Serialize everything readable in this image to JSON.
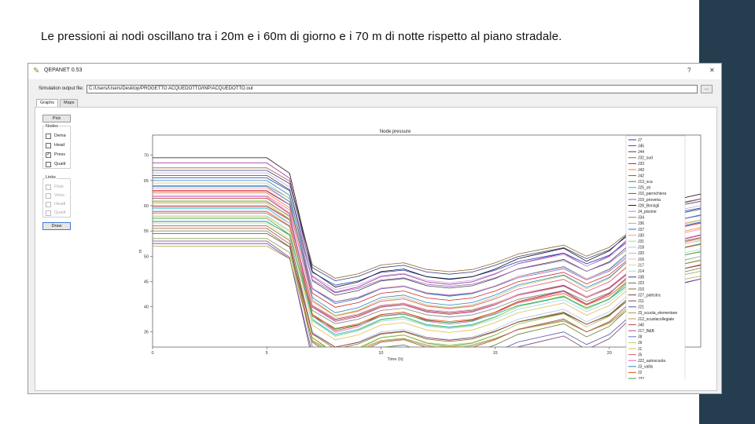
{
  "slide": {
    "title": "Le pressioni ai nodi oscillano tra i 20m e i 60m di giorno e i 70 m di notte rispetto al piano stradale."
  },
  "window": {
    "title": "QEPANET 0.53",
    "help_label": "?",
    "close_label": "✕",
    "app_icon": "pencil-icon"
  },
  "output": {
    "label": "Simulation output file:",
    "value": "C:/Users/Users/Desktop/PROGETTO ACQUEDOTTO/INP/ACQUEDOTTO.out",
    "browse_label": "..."
  },
  "tabs": [
    {
      "label": "Graphs",
      "active": true
    },
    {
      "label": "Maps",
      "active": false
    }
  ],
  "controls": {
    "pick_label": "Pick",
    "nodes_label": "Nodes",
    "nodes": [
      {
        "label": "Dema",
        "checked": false
      },
      {
        "label": "Head",
        "checked": false
      },
      {
        "label": "Press",
        "checked": true
      },
      {
        "label": "Qualit",
        "checked": false
      }
    ],
    "links_label": "Links",
    "links": [
      {
        "label": "Flow",
        "checked": false
      },
      {
        "label": "Veloc",
        "checked": false
      },
      {
        "label": "Headl",
        "checked": false
      },
      {
        "label": "Qualit",
        "checked": false
      }
    ],
    "draw_label": "Draw"
  },
  "chart_data": {
    "type": "line",
    "title": "Node pressure",
    "xlabel": "Time (h)",
    "ylabel": "m",
    "xlim": [
      0,
      24
    ],
    "ylim": [
      32,
      74
    ],
    "xticks": [
      0,
      5,
      10,
      15,
      20
    ],
    "yticks": [
      35,
      40,
      45,
      50,
      55,
      60,
      65,
      70
    ],
    "grid": false,
    "legend_position": "right",
    "x": [
      0,
      5,
      6,
      7,
      8,
      9,
      10,
      11,
      12,
      13,
      14,
      15,
      16,
      17,
      18,
      19,
      20,
      21,
      22,
      23,
      24
    ],
    "profile": {
      "day_drop": [
        0,
        0,
        -3,
        -22,
        -25,
        -24,
        -22,
        -21.5,
        -23,
        -23.5,
        -23,
        -21.5,
        -19.5,
        -18.5,
        -17.5,
        -20,
        -18,
        -14,
        -10,
        -8,
        -7
      ],
      "series_offsets_note": ""
    },
    "series": [
      {
        "name": "J7",
        "color": "#1f3fbf",
        "base": 65.5
      },
      {
        "name": "J45",
        "color": "#a020a0",
        "base": 68.5
      },
      {
        "name": "J44",
        "color": "#444444",
        "base": 66.0
      },
      {
        "name": "J32_sud",
        "color": "#8c6a3a",
        "base": 67.5
      },
      {
        "name": "J33",
        "color": "#c02020",
        "base": 61.5
      },
      {
        "name": "J43",
        "color": "#ff7f0e",
        "base": 62.5
      },
      {
        "name": "J42",
        "color": "#8c564b",
        "base": 60.0
      },
      {
        "name": "J13_sca",
        "color": "#2ca02c",
        "base": 57.5
      },
      {
        "name": "J25_str",
        "color": "#17becf",
        "base": 59.5
      },
      {
        "name": "J10_parrochiera",
        "color": "#d62728",
        "base": 63.0
      },
      {
        "name": "J19_proveria",
        "color": "#9467bd",
        "base": 64.0
      },
      {
        "name": "J28_Borsigli",
        "color": "#111111",
        "base": 69.5
      },
      {
        "name": "J4_piscine",
        "color": "#e377c2",
        "base": 62.0
      },
      {
        "name": "J34",
        "color": "#7f7f7f",
        "base": 58.5
      },
      {
        "name": "J36",
        "color": "#bcbd22",
        "base": 60.5
      },
      {
        "name": "J37",
        "color": "#1f77b4",
        "base": 65.0
      },
      {
        "name": "J30",
        "color": "#ff9896",
        "base": 63.5
      },
      {
        "name": "J31",
        "color": "#98df8a",
        "base": 61.0
      },
      {
        "name": "J18",
        "color": "#aec7e8",
        "base": 57.0
      },
      {
        "name": "J20",
        "color": "#c5b0d5",
        "base": 66.5
      },
      {
        "name": "J16",
        "color": "#f7b6d2",
        "base": 59.0
      },
      {
        "name": "J17",
        "color": "#dbdb8d",
        "base": 56.5
      },
      {
        "name": "J14",
        "color": "#9edae5",
        "base": 58.0
      },
      {
        "name": "J38",
        "color": "#393b79",
        "base": 67.0
      },
      {
        "name": "J23",
        "color": "#637939",
        "base": 55.0
      },
      {
        "name": "J10",
        "color": "#8c6d31",
        "base": 56.0
      },
      {
        "name": "J27_palestra",
        "color": "#843c39",
        "base": 54.5
      },
      {
        "name": "J11",
        "color": "#7b4173",
        "base": 53.0
      },
      {
        "name": "J21",
        "color": "#5254a3",
        "base": 52.5
      },
      {
        "name": "J3_scuola_elementare",
        "color": "#8ca252",
        "base": 53.5
      },
      {
        "name": "J12_scuolacollegiale",
        "color": "#bd9e39",
        "base": 52.0
      },
      {
        "name": "J40",
        "color": "#ad494a",
        "base": 55.5
      },
      {
        "name": "J17_B&B",
        "color": "#a55194",
        "base": 60.8
      },
      {
        "name": "J8",
        "color": "#6b6ecf",
        "base": 62.8
      },
      {
        "name": "J9",
        "color": "#b5cf6b",
        "base": 64.5
      },
      {
        "name": "J1",
        "color": "#e7ba52",
        "base": 57.8
      },
      {
        "name": "J5",
        "color": "#d6616b",
        "base": 59.8
      },
      {
        "name": "J22_autoscuola",
        "color": "#ce6dbd",
        "base": 61.8
      },
      {
        "name": "J3_vallis",
        "color": "#3182bd",
        "base": 63.8
      },
      {
        "name": "J2",
        "color": "#e6550d",
        "base": 58.8
      },
      {
        "name": "J32",
        "color": "#31a354",
        "base": 56.8
      }
    ]
  }
}
